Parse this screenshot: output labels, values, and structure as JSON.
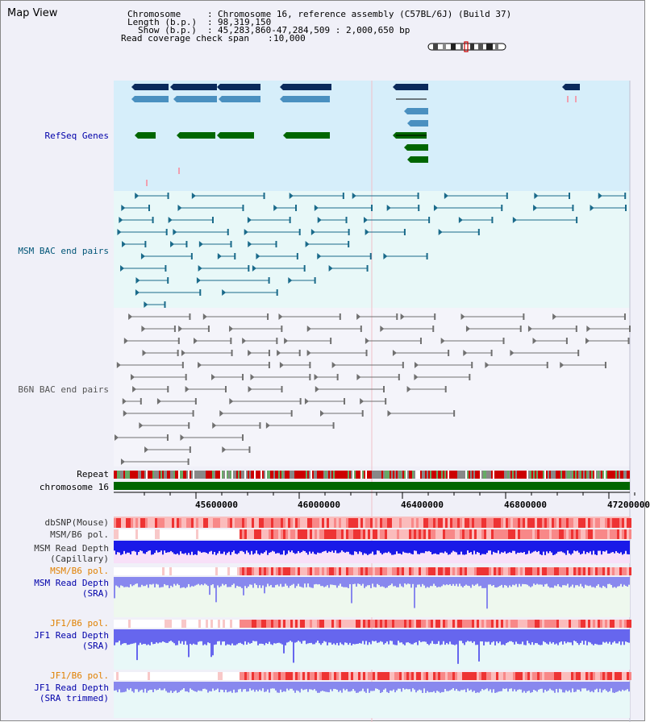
{
  "app": {
    "title": "Map View"
  },
  "info": {
    "chromosome_label": "Chromosome",
    "chromosome_value": "Chromosome 16, reference assembly (C57BL/6J) (Build 37)",
    "length_label": "Length (b.p.)",
    "length_value": "98,319,150",
    "show_label": "Show (b.p.)",
    "show_value": "45,283,860-47,284,509 : 2,000,650 bp",
    "coverage_label": "Read coverage check span",
    "coverage_value": "10,000"
  },
  "tracks": {
    "refseq": "RefSeq Genes",
    "msm_bac": "MSM BAC end pairs",
    "b6n_bac": "B6N BAC end pairs",
    "repeat": "Repeat",
    "chromosome": "chromosome 16",
    "dbsnp": "dbSNP(Mouse)",
    "msm_b6_pol_1": "MSM/B6 pol.",
    "msm_read_depth_cap_1": "MSM Read Depth",
    "msm_read_depth_cap_2": "(Capillary)",
    "msm_b6_pol_2": "MSM/B6 pol.",
    "msm_read_depth_sra_1": "MSM Read Depth",
    "msm_read_depth_sra_2": "(SRA)",
    "jf1_b6_pol_1": "JF1/B6 pol.",
    "jf1_read_depth_sra_1": "JF1 Read Depth",
    "jf1_read_depth_sra_2": "(SRA)",
    "jf1_b6_pol_2": "JF1/B6 pol.",
    "jf1_read_depth_trim_1": "JF1 Read Depth",
    "jf1_read_depth_trim_2": "(SRA trimmed)"
  },
  "axis": {
    "ticks": [
      "45600000",
      "46000000",
      "46400000",
      "46800000",
      "47200000"
    ]
  },
  "colors": {
    "refseq_bg": "#d6eefa",
    "bac_bg": "#e8f8f8",
    "gene_dark": "#0a2a5c",
    "gene_mid": "#4a90c0",
    "gene_green": "#006600",
    "msm_line": "#1a6a8a",
    "b6n_line": "#707070",
    "chrom_green": "#006600",
    "pol_red": "#ee3333",
    "depth_blue": "#2020e0",
    "depth_lightblue": "#8888ee",
    "label_blue": "#0000aa",
    "label_orange": "#e08000",
    "label_teal": "#005577"
  }
}
